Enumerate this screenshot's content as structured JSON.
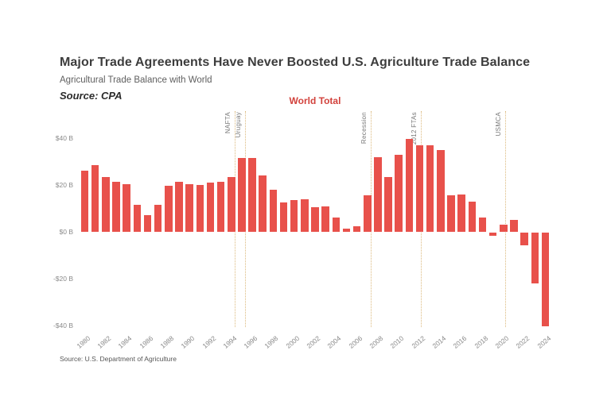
{
  "header": {
    "title": "Major Trade Agreements Have Never Boosted U.S. Agriculture Trade Balance",
    "subtitle": "Agricultural Trade Balance with World",
    "source_label": "Source: CPA"
  },
  "legend": {
    "label": "World Total"
  },
  "footer": {
    "text": "Source: U.S. Department of Agriculture"
  },
  "colors": {
    "bar": "#e8514b",
    "legend_text": "#d2423c",
    "annotation_line": "#dcba7e",
    "annotation_text": "#777777",
    "axis_text": "#8a8a8a"
  },
  "chart_data": {
    "type": "bar",
    "title": "Agricultural Trade Balance with World",
    "series_name": "World Total",
    "unit": "billions USD",
    "grid": false,
    "legend_position": "top-center",
    "x": [
      1980,
      1981,
      1982,
      1983,
      1984,
      1985,
      1986,
      1987,
      1988,
      1989,
      1990,
      1991,
      1992,
      1993,
      1994,
      1995,
      1996,
      1997,
      1998,
      1999,
      2000,
      2001,
      2002,
      2003,
      2004,
      2005,
      2006,
      2007,
      2008,
      2009,
      2010,
      2011,
      2012,
      2013,
      2014,
      2015,
      2016,
      2017,
      2018,
      2019,
      2020,
      2021,
      2022,
      2023,
      2024
    ],
    "values": [
      26,
      28.5,
      23.5,
      21.5,
      20.5,
      11.5,
      7,
      11.5,
      19.5,
      21.5,
      20.5,
      20,
      21,
      21.5,
      23.5,
      31.5,
      31.5,
      24,
      18,
      12.5,
      13.5,
      14,
      10.5,
      11,
      6,
      1.5,
      2.5,
      15.5,
      32,
      23.5,
      33,
      39.5,
      37,
      37,
      35,
      15.5,
      16,
      13,
      6,
      -1.5,
      3,
      5,
      -5.5,
      -22,
      -40
    ],
    "ylim": [
      -45,
      45
    ],
    "yticks": [
      {
        "value": 40,
        "label": "$40 B"
      },
      {
        "value": 20,
        "label": "$20 B"
      },
      {
        "value": 0,
        "label": "$0 B"
      },
      {
        "value": -20,
        "label": "-$20 B"
      },
      {
        "value": -40,
        "label": "-$40 B"
      }
    ],
    "xticks": [
      1980,
      1982,
      1984,
      1986,
      1988,
      1990,
      1992,
      1994,
      1996,
      1998,
      2000,
      2002,
      2004,
      2006,
      2008,
      2010,
      2012,
      2014,
      2016,
      2018,
      2020,
      2022,
      2024
    ],
    "annotations": [
      {
        "label": "NAFTA",
        "position": 1994.4
      },
      {
        "label": "Uruguay",
        "position": 1995.4
      },
      {
        "label": "Recession",
        "position": 2007.4
      },
      {
        "label": "2012 FTAs",
        "position": 2012.15
      },
      {
        "label": "USMCA",
        "position": 2020.25
      }
    ]
  }
}
